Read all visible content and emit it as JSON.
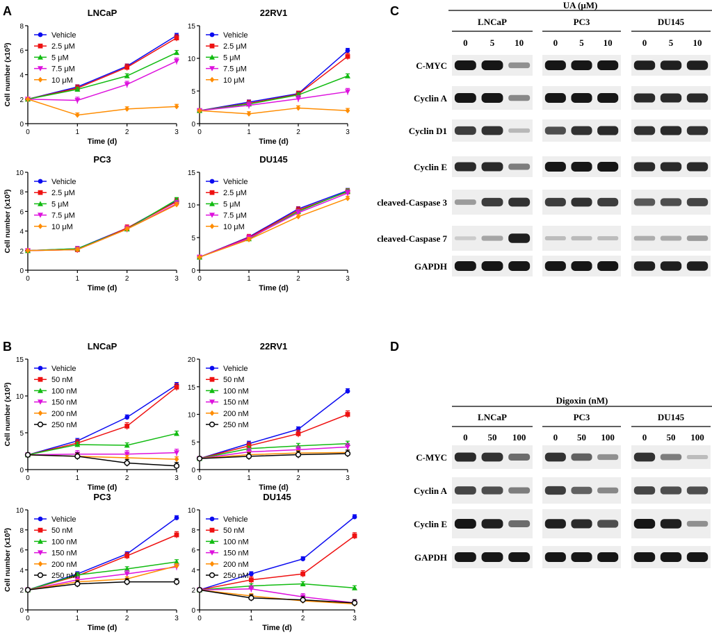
{
  "panel_letters": {
    "A": "A",
    "B": "B",
    "C": "C",
    "D": "D"
  },
  "colors": {
    "Vehicle": "#0b0bf0",
    "c1": "#ee1111",
    "c2": "#11bb11",
    "c3": "#dd11dd",
    "c4": "#ff8c00",
    "c5": "#000000"
  },
  "chart_data": [
    {
      "type": "line",
      "title": "LNCaP",
      "xlabel": "Time (d)",
      "ylabel": "Cell number (x10^5)",
      "x": [
        0,
        1,
        2,
        3
      ],
      "xlim": [
        0,
        3
      ],
      "ylim": [
        0,
        8
      ],
      "yticks": [
        0,
        2,
        4,
        6,
        8
      ],
      "series": [
        {
          "name": "Vehicle",
          "values": [
            2.0,
            3.0,
            4.7,
            7.2
          ]
        },
        {
          "name": "2.5 μM",
          "values": [
            2.0,
            2.9,
            4.6,
            7.0
          ]
        },
        {
          "name": "5 μM",
          "values": [
            2.0,
            2.8,
            3.9,
            5.8
          ]
        },
        {
          "name": "7.5 μM",
          "values": [
            2.0,
            1.9,
            3.2,
            5.1
          ]
        },
        {
          "name": "10 μM",
          "values": [
            2.0,
            0.7,
            1.2,
            1.4
          ]
        }
      ]
    },
    {
      "type": "line",
      "title": "22RV1",
      "xlabel": "Time (d)",
      "ylabel": "",
      "x": [
        0,
        1,
        2,
        3
      ],
      "xlim": [
        0,
        3
      ],
      "ylim": [
        0,
        15
      ],
      "yticks": [
        0,
        5,
        10,
        15
      ],
      "series": [
        {
          "name": "Vehicle",
          "values": [
            2.0,
            3.3,
            4.6,
            11.2
          ]
        },
        {
          "name": "2.5 μM",
          "values": [
            2.0,
            3.1,
            4.5,
            10.3
          ]
        },
        {
          "name": "5 μM",
          "values": [
            2.0,
            3.0,
            4.4,
            7.3
          ]
        },
        {
          "name": "7.5 μM",
          "values": [
            2.0,
            2.8,
            3.8,
            4.9
          ]
        },
        {
          "name": "10 μM",
          "values": [
            2.0,
            1.5,
            2.4,
            2.0
          ]
        }
      ]
    },
    {
      "type": "line",
      "title": "PC3",
      "xlabel": "Time (d)",
      "ylabel": "Cell number (x10^5)",
      "x": [
        0,
        1,
        2,
        3
      ],
      "xlim": [
        0,
        3
      ],
      "ylim": [
        0,
        10
      ],
      "yticks": [
        0,
        2,
        4,
        6,
        8,
        10
      ],
      "series": [
        {
          "name": "Vehicle",
          "values": [
            2.0,
            2.2,
            4.3,
            7.1
          ]
        },
        {
          "name": "2.5 μM",
          "values": [
            2.0,
            2.1,
            4.3,
            7.0
          ]
        },
        {
          "name": "5 μM",
          "values": [
            2.0,
            2.2,
            4.2,
            7.2
          ]
        },
        {
          "name": "7.5 μM",
          "values": [
            2.0,
            2.1,
            4.2,
            6.8
          ]
        },
        {
          "name": "10 μM",
          "values": [
            2.0,
            2.1,
            4.2,
            6.7
          ]
        }
      ]
    },
    {
      "type": "line",
      "title": "DU145",
      "xlabel": "Time (d)",
      "ylabel": "",
      "x": [
        0,
        1,
        2,
        3
      ],
      "xlim": [
        0,
        3
      ],
      "ylim": [
        0,
        15
      ],
      "yticks": [
        0,
        5,
        10,
        15
      ],
      "series": [
        {
          "name": "Vehicle",
          "values": [
            2.0,
            5.1,
            9.4,
            12.2
          ]
        },
        {
          "name": "2.5 μM",
          "values": [
            2.0,
            5.0,
            9.2,
            12.0
          ]
        },
        {
          "name": "5 μM",
          "values": [
            2.0,
            4.8,
            9.0,
            12.1
          ]
        },
        {
          "name": "7.5 μM",
          "values": [
            2.0,
            4.9,
            8.8,
            11.8
          ]
        },
        {
          "name": "10 μM",
          "values": [
            2.0,
            4.7,
            8.2,
            11.0
          ]
        }
      ]
    },
    {
      "type": "line",
      "title": "LNCaP",
      "xlabel": "Time (d)",
      "ylabel": "Cell number (x10^5)",
      "x": [
        0,
        1,
        2,
        3
      ],
      "xlim": [
        0,
        3
      ],
      "ylim": [
        0,
        15
      ],
      "yticks": [
        0,
        5,
        10,
        15
      ],
      "series": [
        {
          "name": "Vehicle",
          "values": [
            2.0,
            3.9,
            7.1,
            11.5
          ]
        },
        {
          "name": "50 nM",
          "values": [
            2.0,
            3.6,
            5.9,
            11.2
          ]
        },
        {
          "name": "100 nM",
          "values": [
            2.0,
            3.4,
            3.3,
            4.9
          ]
        },
        {
          "name": "150 nM",
          "values": [
            2.0,
            2.1,
            2.1,
            2.3
          ]
        },
        {
          "name": "200 nM",
          "values": [
            2.0,
            1.8,
            1.6,
            1.4
          ]
        },
        {
          "name": "250 nM",
          "values": [
            2.0,
            1.8,
            0.9,
            0.5
          ]
        }
      ]
    },
    {
      "type": "line",
      "title": "22RV1",
      "xlabel": "Time (d)",
      "ylabel": "",
      "x": [
        0,
        1,
        2,
        3
      ],
      "xlim": [
        0,
        3
      ],
      "ylim": [
        0,
        20
      ],
      "yticks": [
        0,
        5,
        10,
        15,
        20
      ],
      "series": [
        {
          "name": "Vehicle",
          "values": [
            2.0,
            4.7,
            7.3,
            14.2
          ]
        },
        {
          "name": "50 nM",
          "values": [
            2.0,
            4.3,
            6.5,
            10.0
          ]
        },
        {
          "name": "100 nM",
          "values": [
            2.0,
            3.8,
            4.3,
            4.7
          ]
        },
        {
          "name": "150 nM",
          "values": [
            2.0,
            3.2,
            3.6,
            4.1
          ]
        },
        {
          "name": "200 nM",
          "values": [
            2.0,
            2.7,
            3.0,
            3.1
          ]
        },
        {
          "name": "250 nM",
          "values": [
            2.0,
            2.4,
            2.7,
            2.9
          ]
        }
      ]
    },
    {
      "type": "line",
      "title": "PC3",
      "xlabel": "Time (d)",
      "ylabel": "Cell number (x10^5)",
      "x": [
        0,
        1,
        2,
        3
      ],
      "xlim": [
        0,
        3
      ],
      "ylim": [
        0,
        10
      ],
      "yticks": [
        0,
        2,
        4,
        6,
        8,
        10
      ],
      "series": [
        {
          "name": "Vehicle",
          "values": [
            2.0,
            3.6,
            5.6,
            9.2
          ]
        },
        {
          "name": "50 nM",
          "values": [
            2.0,
            3.4,
            5.4,
            7.5
          ]
        },
        {
          "name": "100 nM",
          "values": [
            2.0,
            3.5,
            4.1,
            4.8
          ]
        },
        {
          "name": "150 nM",
          "values": [
            2.0,
            3.0,
            3.6,
            4.3
          ]
        },
        {
          "name": "200 nM",
          "values": [
            2.0,
            2.8,
            3.1,
            4.4
          ]
        },
        {
          "name": "250 nM",
          "values": [
            2.0,
            2.6,
            2.8,
            2.8
          ]
        }
      ]
    },
    {
      "type": "line",
      "title": "DU145",
      "xlabel": "Time (d)",
      "ylabel": "",
      "x": [
        0,
        1,
        2,
        3
      ],
      "xlim": [
        0,
        3
      ],
      "ylim": [
        0,
        10
      ],
      "yticks": [
        0,
        2,
        4,
        6,
        8,
        10
      ],
      "series": [
        {
          "name": "Vehicle",
          "values": [
            2.0,
            3.6,
            5.1,
            9.3
          ]
        },
        {
          "name": "50 nM",
          "values": [
            2.0,
            3.0,
            3.6,
            7.4
          ]
        },
        {
          "name": "100 nM",
          "values": [
            2.0,
            2.4,
            2.6,
            2.2
          ]
        },
        {
          "name": "150 nM",
          "values": [
            2.0,
            2.1,
            1.3,
            0.7
          ]
        },
        {
          "name": "200 nM",
          "values": [
            2.0,
            1.4,
            0.9,
            0.6
          ]
        },
        {
          "name": "250 nM",
          "values": [
            2.0,
            1.2,
            1.0,
            0.7
          ]
        }
      ]
    }
  ],
  "western_blots": [
    {
      "treatment": "UA (μM)",
      "cell_lines": [
        "LNCaP",
        "PC3",
        "DU145"
      ],
      "doses": [
        "0",
        "5",
        "10"
      ],
      "rows": [
        {
          "label": "C-MYC",
          "levels": [
            [
              1.0,
              1.0,
              0.35
            ],
            [
              1.0,
              1.0,
              1.0
            ],
            [
              0.95,
              0.95,
              0.95
            ]
          ]
        },
        {
          "label": "Cyclin A",
          "levels": [
            [
              1.0,
              1.0,
              0.4
            ],
            [
              1.0,
              1.0,
              1.0
            ],
            [
              0.9,
              0.9,
              0.9
            ]
          ]
        },
        {
          "label": "Cyclin D1",
          "levels": [
            [
              0.8,
              0.85,
              0.15
            ],
            [
              0.7,
              0.85,
              0.9
            ],
            [
              0.85,
              0.9,
              0.85
            ]
          ]
        },
        {
          "label": "Cyclin E",
          "levels": [
            [
              0.9,
              0.9,
              0.45
            ],
            [
              1.0,
              1.0,
              1.0
            ],
            [
              0.9,
              0.9,
              0.9
            ]
          ]
        },
        {
          "label": "cleaved-Caspase 3",
          "levels": [
            [
              0.3,
              0.8,
              0.85
            ],
            [
              0.8,
              0.85,
              0.8
            ],
            [
              0.65,
              0.7,
              0.75
            ]
          ]
        },
        {
          "label": "cleaved-Caspase 7",
          "levels": [
            [
              0.05,
              0.25,
              0.95
            ],
            [
              0.12,
              0.14,
              0.12
            ],
            [
              0.2,
              0.22,
              0.3
            ]
          ]
        },
        {
          "label": "GAPDH",
          "levels": [
            [
              1.0,
              1.0,
              1.0
            ],
            [
              1.0,
              1.0,
              1.0
            ],
            [
              0.95,
              0.95,
              0.95
            ]
          ]
        }
      ]
    },
    {
      "treatment": "Digoxin (nM)",
      "cell_lines": [
        "LNCaP",
        "PC3",
        "DU145"
      ],
      "doses": [
        "0",
        "50",
        "100"
      ],
      "rows": [
        {
          "label": "C-MYC",
          "levels": [
            [
              0.9,
              0.85,
              0.55
            ],
            [
              0.85,
              0.6,
              0.35
            ],
            [
              0.85,
              0.45,
              0.12
            ]
          ]
        },
        {
          "label": "Cyclin A",
          "levels": [
            [
              0.75,
              0.7,
              0.45
            ],
            [
              0.8,
              0.6,
              0.4
            ],
            [
              0.75,
              0.7,
              0.7
            ]
          ]
        },
        {
          "label": "Cyclin E",
          "levels": [
            [
              1.0,
              0.95,
              0.55
            ],
            [
              0.95,
              0.9,
              0.7
            ],
            [
              1.0,
              0.95,
              0.35
            ]
          ]
        },
        {
          "label": "GAPDH",
          "levels": [
            [
              1.0,
              1.0,
              1.0
            ],
            [
              1.0,
              1.0,
              1.0
            ],
            [
              1.0,
              1.0,
              1.0
            ]
          ]
        }
      ]
    }
  ]
}
